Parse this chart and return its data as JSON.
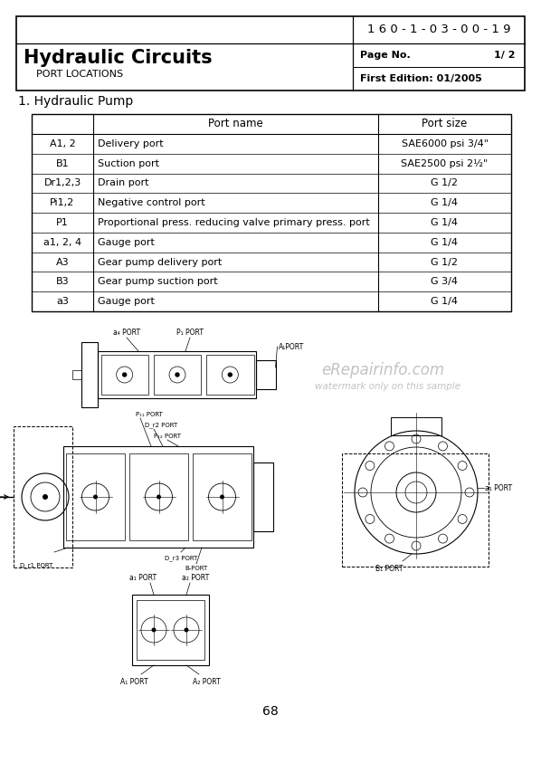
{
  "doc_number": "1 6 0 - 1 - 0 3 - 0 0 - 1 9",
  "title": "Hydraulic Circuits",
  "subtitle": "PORT LOCATIONS",
  "page_no_label": "Page No.",
  "page_no_val": "1/ 2",
  "edition": "First Edition: 01/2005",
  "section": "1. Hydraulic Pump",
  "table_headers": [
    "",
    "Port name",
    "Port size"
  ],
  "table_rows": [
    [
      "A1, 2",
      "Delivery port",
      "SAE6000 psi 3/4\""
    ],
    [
      "B1",
      "Suction port",
      "SAE2500 psi 2½\""
    ],
    [
      "Dr1,2,3",
      "Drain port",
      "G 1/2"
    ],
    [
      "Pi1,2",
      "Negative control port",
      "G 1/4"
    ],
    [
      "P1",
      "Proportional press. reducing valve primary press. port",
      "G 1/4"
    ],
    [
      "a1, 2, 4",
      "Gauge port",
      "G 1/4"
    ],
    [
      "A3",
      "Gear pump delivery port",
      "G 1/2"
    ],
    [
      "B3",
      "Gear pump suction port",
      "G 3/4"
    ],
    [
      "a3",
      "Gauge port",
      "G 1/4"
    ]
  ],
  "page_num": "68",
  "watermark": "eRepairinfo.com",
  "watermark2": "watermark only on this sample",
  "bg_color": "#ffffff",
  "text_color": "#000000"
}
